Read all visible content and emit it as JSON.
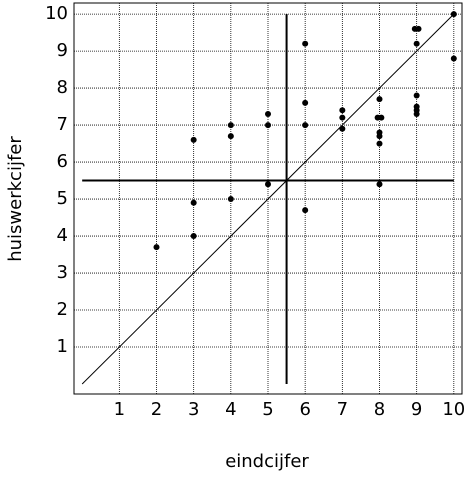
{
  "chart_data": {
    "type": "scatter",
    "x_label": "eindcijfer",
    "y_label": "huiswerkcijfer",
    "xlim": [
      -0.22,
      10.22
    ],
    "ylim": [
      -0.27,
      10.3
    ],
    "xticks": [
      1,
      2,
      3,
      4,
      5,
      6,
      7,
      8,
      9,
      10
    ],
    "yticks": [
      1,
      2,
      3,
      4,
      5,
      6,
      7,
      8,
      9,
      10
    ],
    "grid": true,
    "series": [
      {
        "color": "#000000",
        "x": [
          2,
          3,
          3,
          3,
          4,
          4,
          4,
          5,
          5,
          5,
          6,
          6,
          6,
          6,
          7,
          7,
          7,
          8,
          7.95,
          8.05,
          8,
          8,
          8,
          8,
          8.95,
          9.05,
          9,
          9,
          9,
          9,
          9,
          10,
          10
        ],
        "values": [
          3.7,
          6.6,
          4.9,
          4.0,
          7.0,
          6.7,
          5.0,
          7.3,
          7.0,
          5.4,
          9.2,
          7.6,
          7.0,
          4.7,
          7.4,
          7.2,
          6.9,
          7.7,
          7.2,
          7.2,
          6.8,
          6.7,
          6.5,
          5.4,
          9.6,
          9.6,
          9.2,
          7.8,
          7.5,
          7.4,
          7.3,
          10,
          8.8
        ]
      }
    ],
    "reference_lines": [
      {
        "x": [
          0,
          10
        ],
        "values": [
          0,
          10
        ],
        "width": 1
      },
      {
        "x": [
          5.5,
          5.5
        ],
        "values": [
          0,
          10
        ],
        "width": 2
      },
      {
        "x": [
          0,
          10
        ],
        "values": [
          5.5,
          5.5
        ],
        "width": 2
      }
    ]
  }
}
